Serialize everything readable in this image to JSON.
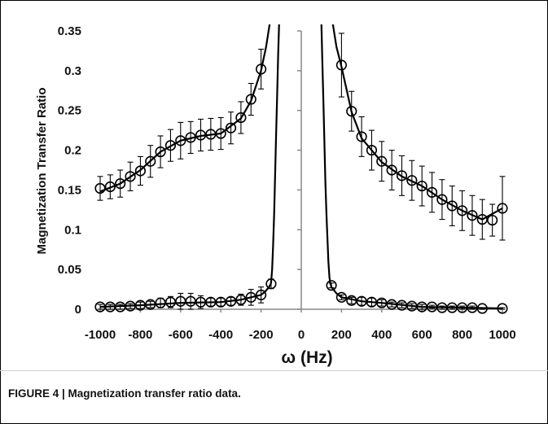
{
  "caption": "FIGURE 4 | Magnetization transfer ratio data.",
  "chart_data": {
    "type": "scatter",
    "xlabel": "ω (Hz)",
    "ylabel": "Magnetization Transfer Ratio",
    "xlim": [
      -1000,
      1000
    ],
    "ylim": [
      0,
      0.35
    ],
    "x_ticks": [
      "-1000",
      "-800",
      "-600",
      "-400",
      "-200",
      "0",
      "200",
      "400",
      "600",
      "800",
      "1000"
    ],
    "y_ticks": [
      "0",
      "0.05",
      "0.1",
      "0.15",
      "0.2",
      "0.25",
      "0.3",
      "0.35"
    ],
    "grid": false,
    "legend": "none",
    "marker": "open-circle",
    "color": "#000000",
    "series": [
      {
        "x": [
          -1000,
          -950,
          -900,
          -850,
          -800,
          -750,
          -700,
          -650,
          -600,
          -550,
          -500,
          -450,
          -400,
          -350,
          -300,
          -250,
          -200
        ],
        "y": [
          0.152,
          0.154,
          0.158,
          0.167,
          0.174,
          0.186,
          0.198,
          0.206,
          0.212,
          0.216,
          0.219,
          0.22,
          0.221,
          0.228,
          0.241,
          0.264,
          0.302
        ],
        "error": [
          0.015,
          0.015,
          0.017,
          0.018,
          0.018,
          0.02,
          0.02,
          0.02,
          0.023,
          0.02,
          0.02,
          0.02,
          0.02,
          0.02,
          0.02,
          0.02,
          0.025
        ]
      },
      {
        "x": [
          200,
          250,
          300,
          350,
          400,
          450,
          500,
          550,
          600,
          650,
          700,
          750,
          800,
          850,
          900,
          950,
          1000
        ],
        "y": [
          0.307,
          0.249,
          0.217,
          0.2,
          0.186,
          0.175,
          0.168,
          0.162,
          0.155,
          0.147,
          0.138,
          0.13,
          0.124,
          0.118,
          0.113,
          0.112,
          0.127
        ],
        "error": [
          0.04,
          0.025,
          0.025,
          0.025,
          0.025,
          0.025,
          0.025,
          0.025,
          0.025,
          0.025,
          0.025,
          0.025,
          0.025,
          0.025,
          0.025,
          0.02,
          0.04
        ]
      },
      {
        "x": [
          -1000,
          -950,
          -900,
          -850,
          -800,
          -750,
          -700,
          -650,
          -600,
          -550,
          -500,
          -450,
          -400,
          -350,
          -300,
          -250,
          -200,
          -150
        ],
        "y": [
          0.003,
          0.003,
          0.003,
          0.004,
          0.005,
          0.006,
          0.008,
          0.009,
          0.01,
          0.01,
          0.009,
          0.009,
          0.009,
          0.01,
          0.012,
          0.015,
          0.018,
          0.032
        ],
        "error": [
          0.003,
          0.003,
          0.003,
          0.003,
          0.004,
          0.004,
          0.006,
          0.007,
          0.01,
          0.01,
          0.008,
          0.005,
          0.005,
          0.005,
          0.007,
          0.01,
          0.01,
          0.006
        ]
      },
      {
        "x": [
          150,
          200,
          250,
          300,
          350,
          400,
          450,
          500,
          550,
          600,
          650,
          700,
          750,
          800,
          850,
          900,
          1000
        ],
        "y": [
          0.03,
          0.015,
          0.011,
          0.01,
          0.009,
          0.008,
          0.006,
          0.005,
          0.004,
          0.003,
          0.003,
          0.002,
          0.002,
          0.002,
          0.002,
          0.001,
          0.001
        ],
        "error": [
          0.003,
          0.003,
          0.004,
          0.005,
          0.005,
          0.004,
          0.003,
          0.003,
          0.003,
          0.003,
          0.002,
          0.002,
          0.002,
          0.002,
          0.002,
          0.001,
          0.001
        ]
      }
    ],
    "fit_curves": [
      {
        "x": [
          -1000,
          -900,
          -800,
          -700,
          -600,
          -500,
          -400,
          -300,
          -250,
          -200,
          -175,
          -150,
          -140,
          -130
        ],
        "y": [
          0.148,
          0.158,
          0.175,
          0.198,
          0.212,
          0.218,
          0.221,
          0.24,
          0.262,
          0.3,
          0.33,
          0.37,
          0.4,
          0.45
        ]
      },
      {
        "x": [
          130,
          150,
          175,
          200,
          250,
          300,
          400,
          500,
          600,
          700,
          800,
          900,
          1000
        ],
        "y": [
          0.44,
          0.37,
          0.33,
          0.305,
          0.248,
          0.215,
          0.185,
          0.167,
          0.155,
          0.138,
          0.124,
          0.113,
          0.127
        ]
      },
      {
        "x": [
          -1000,
          -800,
          -600,
          -400,
          -300,
          -250,
          -200,
          -180,
          -160,
          -150,
          -145,
          -140,
          -135,
          -130,
          -125,
          -120,
          -115,
          -110
        ],
        "y": [
          0.003,
          0.005,
          0.008,
          0.009,
          0.012,
          0.015,
          0.018,
          0.022,
          0.028,
          0.033,
          0.05,
          0.08,
          0.12,
          0.17,
          0.22,
          0.27,
          0.32,
          0.36
        ]
      },
      {
        "x": [
          100,
          105,
          110,
          115,
          120,
          125,
          130,
          135,
          140,
          145,
          150,
          175,
          200,
          300,
          400,
          600,
          800,
          1000
        ],
        "y": [
          0.36,
          0.31,
          0.26,
          0.21,
          0.16,
          0.12,
          0.09,
          0.06,
          0.04,
          0.032,
          0.028,
          0.02,
          0.015,
          0.01,
          0.008,
          0.003,
          0.002,
          0.001
        ]
      }
    ]
  }
}
